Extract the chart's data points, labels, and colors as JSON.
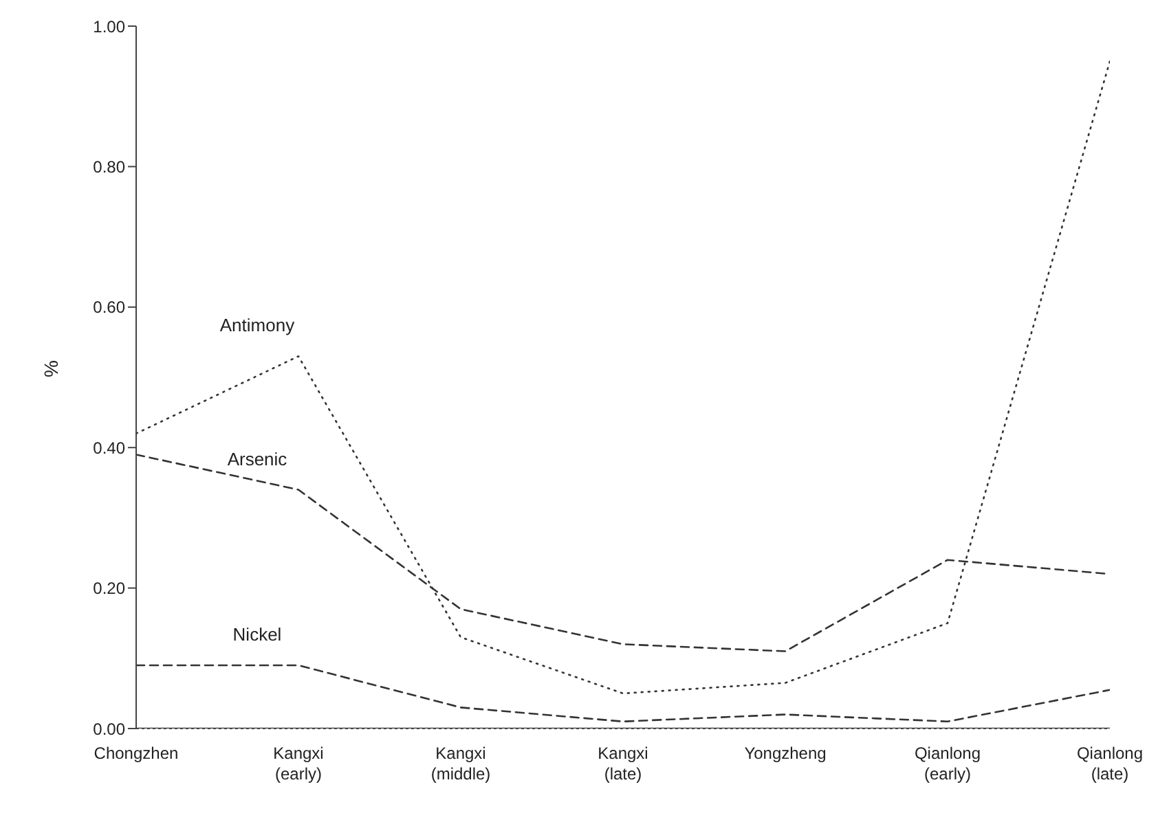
{
  "chart_data": {
    "type": "line",
    "ylabel": "%",
    "categories": [
      "Chongzhen",
      "Kangxi (early)",
      "Kangxi (middle)",
      "Kangxi (late)",
      "Yongzheng",
      "Qianlong (early)",
      "Qianlong (late)"
    ],
    "series": [
      {
        "name": "Antimony",
        "color": "#333333",
        "line_style": "dotted",
        "values": [
          0.42,
          0.53,
          0.13,
          0.05,
          0.065,
          0.15,
          0.95
        ]
      },
      {
        "name": "Arsenic",
        "color": "#333333",
        "line_style": "dashed",
        "values": [
          0.39,
          0.34,
          0.17,
          0.12,
          0.11,
          0.24,
          0.22
        ]
      },
      {
        "name": "Nickel",
        "color": "#333333",
        "line_style": "dashed",
        "values": [
          0.09,
          0.09,
          0.03,
          0.01,
          0.02,
          0.01,
          0.055
        ]
      },
      {
        "color": "#333333",
        "line_style": "solid",
        "values": [
          0.0,
          0.0,
          0.0,
          0.0,
          0.0,
          0.0,
          0.0
        ]
      }
    ],
    "ylim": [
      0,
      1
    ],
    "yticks": [
      {
        "value": 0,
        "label": "0.00"
      },
      {
        "value": 0.2,
        "label": "0.20"
      },
      {
        "value": 0.4,
        "label": "0.40"
      },
      {
        "value": 0.6,
        "label": "0.60"
      },
      {
        "value": 0.8,
        "label": "0.80"
      },
      {
        "value": 1,
        "label": "1.00"
      }
    ],
    "marker": "none"
  }
}
